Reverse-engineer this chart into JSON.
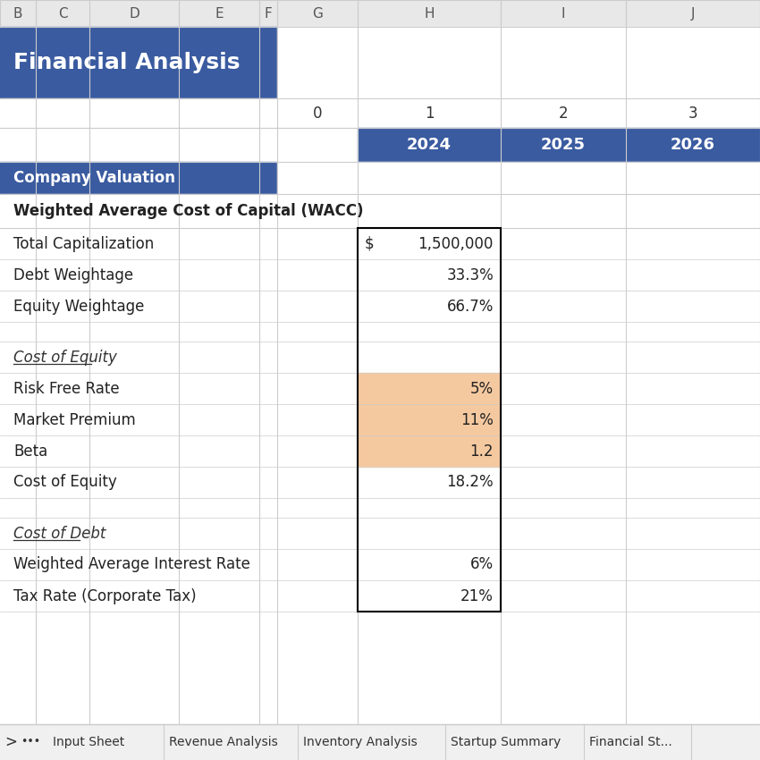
{
  "title": "Financial Analysis",
  "title_bg": "#3A5BA0",
  "title_color": "#FFFFFF",
  "header_bg": "#3A5BA0",
  "header_color": "#FFFFFF",
  "col_letters": [
    "B",
    "C",
    "D",
    "E",
    "F",
    "G",
    "H",
    "I",
    "J"
  ],
  "col_numbers": [
    "0",
    "1",
    "2",
    "3"
  ],
  "col_years": [
    "2024",
    "2025",
    "2026"
  ],
  "section_label": "Company Valuation",
  "section_bg": "#3A5BA0",
  "section_color": "#FFFFFF",
  "wacc_label": "Weighted Average Cost of Capital (WACC)",
  "rows": [
    {
      "label": "Total Capitalization",
      "value": "$ 1,500,000",
      "style": "normal",
      "highlight": false
    },
    {
      "label": "Debt Weightage",
      "value": "33.3%",
      "style": "normal",
      "highlight": false
    },
    {
      "label": "Equity Weightage",
      "value": "66.7%",
      "style": "normal",
      "highlight": false
    },
    {
      "label": "",
      "value": "",
      "style": "spacer",
      "highlight": false
    },
    {
      "label": "Cost of Equity",
      "value": "",
      "style": "italic_underline",
      "highlight": false
    },
    {
      "label": "Risk Free Rate",
      "value": "5%",
      "style": "normal",
      "highlight": true
    },
    {
      "label": "Market Premium",
      "value": "11%",
      "style": "normal",
      "highlight": true
    },
    {
      "label": "Beta",
      "value": "1.2",
      "style": "normal",
      "highlight": true
    },
    {
      "label": "Cost of Equity",
      "value": "18.2%",
      "style": "normal",
      "highlight": false
    },
    {
      "label": "",
      "value": "",
      "style": "spacer",
      "highlight": false
    },
    {
      "label": "Cost of Debt",
      "value": "",
      "style": "italic_underline",
      "highlight": false
    },
    {
      "label": "Weighted Average Interest Rate",
      "value": "6%",
      "style": "normal",
      "highlight": false
    },
    {
      "label": "Tax Rate (Corporate Tax)",
      "value": "21%",
      "style": "normal",
      "highlight": false
    }
  ],
  "highlight_color": "#F5C9A0",
  "border_color": "#000000",
  "grid_color": "#CCCCCC",
  "bg_color": "#FFFFFF",
  "tab_labels": [
    "Input Sheet",
    "Revenue Analysis",
    "Inventory Analysis",
    "Startup Summary",
    "Financial St..."
  ],
  "tab_bar_color": "#F0F0F0",
  "tab_text_color": "#333333",
  "cell_border_color": "#B0B0B0",
  "col_bounds": [
    0,
    40,
    100,
    200,
    290,
    310,
    400,
    560,
    700,
    850
  ]
}
